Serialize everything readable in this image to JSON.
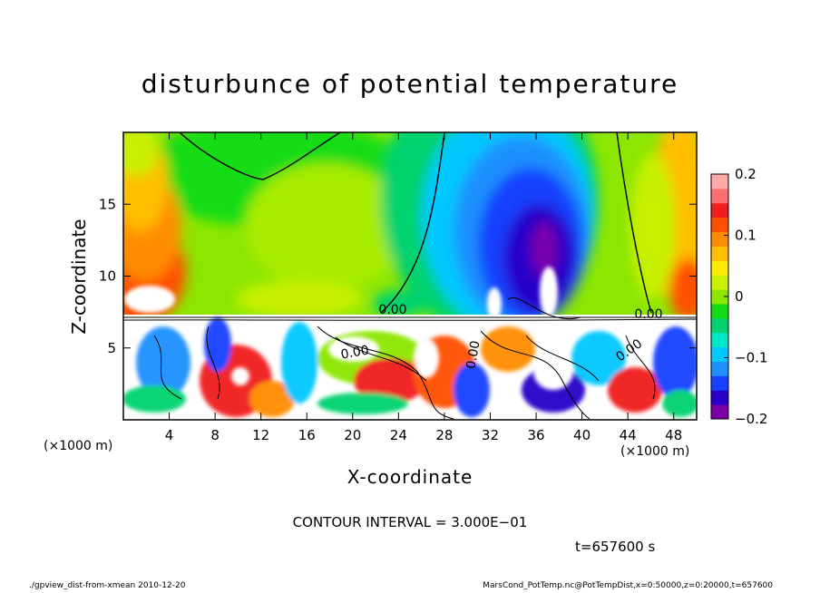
{
  "chart_data": {
    "type": "heatmap",
    "title": "disturbunce of potential temperature",
    "xlabel": "X-coordinate",
    "ylabel": "Z-coordinate",
    "x_unit": "(×1000 m)",
    "z_unit": "(×1000 m)",
    "xlim": [
      0,
      50
    ],
    "ylim": [
      0,
      20
    ],
    "x_ticks": [
      4,
      8,
      12,
      16,
      20,
      24,
      28,
      32,
      36,
      40,
      44,
      48
    ],
    "y_ticks": [
      5,
      10,
      15
    ],
    "colorbar": {
      "range": [
        -0.2,
        0.2
      ],
      "ticks": [
        "0.2",
        "0.1",
        "0",
        "−0.1",
        "−0.2"
      ],
      "colors": [
        "#7b00a8",
        "#2800c8",
        "#1840ff",
        "#1e90ff",
        "#00c8ff",
        "#00e6c8",
        "#00d26e",
        "#14dc14",
        "#8ce600",
        "#c8f000",
        "#ffeb00",
        "#ffbe00",
        "#ff8c00",
        "#ff5000",
        "#f01e1e",
        "#ff6e6e",
        "#ffa8a8"
      ]
    },
    "contour_labels": [
      "0.00",
      "0.00",
      "0.00",
      "0.00",
      "0.00"
    ],
    "contour_interval": "CONTOUR INTERVAL = 3.000E−01",
    "time": "t=657600 s"
  },
  "footer": {
    "left": "./gpview_dist-from-xmean  2010-12-20",
    "right": "MarsCond_PotTemp.nc@PotTempDist,x=0:50000,z=0:20000,t=657600"
  }
}
